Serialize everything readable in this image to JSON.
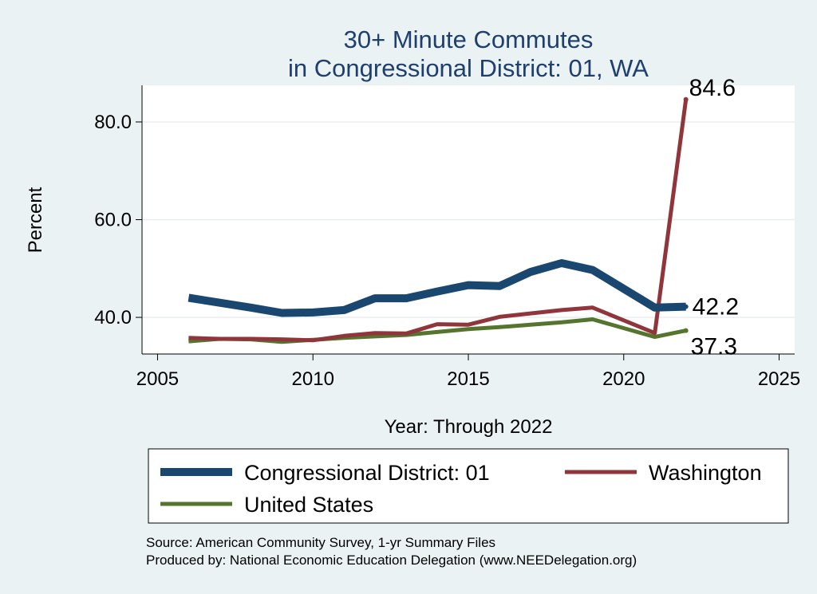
{
  "chart_data": {
    "type": "line",
    "title": [
      "30+ Minute Commutes",
      "in Congressional District:  01, WA"
    ],
    "xlabel": "Year: Through 2022",
    "ylabel": "Percent",
    "xlim": [
      2004.5,
      2025.5
    ],
    "ylim": [
      32.5,
      87.5
    ],
    "xticks": [
      2005,
      2010,
      2015,
      2020,
      2025
    ],
    "yticks": [
      40,
      60,
      80
    ],
    "ytick_labels": [
      "40.0",
      "60.0",
      "80.0"
    ],
    "grid": true,
    "x": [
      2006,
      2007,
      2008,
      2009,
      2010,
      2011,
      2012,
      2013,
      2014,
      2015,
      2016,
      2017,
      2018,
      2019,
      2020,
      2021,
      2022
    ],
    "series": [
      {
        "name": "Congressional District:  01",
        "color": "#1a476f",
        "values": [
          44.0,
          43.0,
          42.0,
          40.9,
          41.0,
          41.5,
          43.9,
          43.9,
          45.3,
          46.6,
          46.4,
          49.3,
          51.1,
          49.7,
          null,
          42.0,
          42.2
        ],
        "end_label": "42.2"
      },
      {
        "name": "Washington",
        "color": "#90353b",
        "values": [
          35.8,
          35.6,
          35.6,
          35.5,
          35.3,
          36.2,
          36.8,
          36.7,
          38.6,
          38.5,
          40.1,
          40.8,
          41.5,
          42.0,
          null,
          36.8,
          84.6
        ],
        "end_label": "84.6"
      },
      {
        "name": "United States",
        "color": "#55752f",
        "values": [
          35.1,
          35.6,
          35.5,
          35.0,
          35.4,
          35.8,
          36.1,
          36.4,
          37.0,
          37.6,
          38.0,
          38.5,
          39.0,
          39.6,
          null,
          36.0,
          37.3
        ],
        "end_label": "37.3"
      }
    ],
    "legend": {
      "position": "bottom",
      "entries": [
        "Congressional District:  01",
        "Washington",
        "United States"
      ]
    },
    "notes": [
      "Source: American Community Survey, 1-yr Summary Files",
      "Produced by: National Economic Education Delegation (www.NEEDelegation.org)"
    ]
  }
}
